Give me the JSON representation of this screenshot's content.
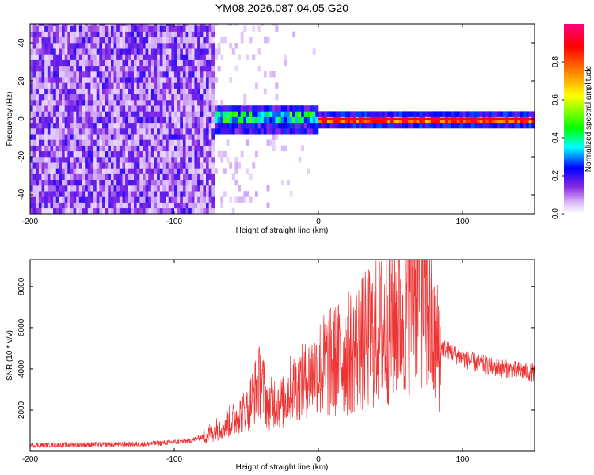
{
  "title": "YM08.2026.087.04.05.G20",
  "chart_data": [
    {
      "type": "heatmap",
      "name": "spectrogram",
      "xlabel": "Height of straight line (km)",
      "ylabel": "Frequency (Hz)",
      "xlim": [
        -200,
        150
      ],
      "ylim": [
        -50,
        50
      ],
      "x_ticks": [
        -200,
        -100,
        0,
        100
      ],
      "y_ticks": [
        -40,
        -20,
        0,
        20,
        40
      ],
      "colorbar": {
        "label": "Normalized spectral amplitude",
        "range": [
          0,
          1
        ],
        "ticks": [
          0.0,
          0.2,
          0.4,
          0.6,
          0.8
        ],
        "colors": [
          "#ffffff",
          "#8a2be2",
          "#0000ff",
          "#00ffff",
          "#00ff00",
          "#ffff00",
          "#ff8000",
          "#ff0000",
          "#ff0080"
        ]
      },
      "regions": [
        {
          "x_range": [
            -200,
            -72
          ],
          "description": "broadband noise",
          "amplitude": 0.25,
          "freq_range": [
            -50,
            50
          ]
        },
        {
          "x_range": [
            -72,
            0
          ],
          "description": "narrowband signal",
          "amplitude": 0.45,
          "freq_range": [
            -6,
            6
          ]
        },
        {
          "x_range": [
            0,
            150
          ],
          "description": "strong tone near 0 Hz",
          "amplitude": 0.9,
          "freq_range": [
            -3,
            3
          ]
        }
      ]
    },
    {
      "type": "line",
      "name": "snr",
      "xlabel": "Height of straight line (km)",
      "ylabel": "SNR (10 * v/v)",
      "xlim": [
        -200,
        150
      ],
      "ylim": [
        0,
        9300
      ],
      "x_ticks": [
        -200,
        -100,
        0,
        100
      ],
      "y_ticks": [
        2000,
        4000,
        6000,
        8000
      ],
      "color": "#ee3333",
      "envelope": {
        "x": [
          -200,
          -120,
          -90,
          -80,
          -60,
          -50,
          -40,
          -35,
          -30,
          -25,
          -20,
          -10,
          0,
          10,
          20,
          30,
          40,
          50,
          60,
          65,
          70,
          75,
          80,
          90,
          100,
          110,
          120,
          130,
          140,
          150
        ],
        "y": [
          300,
          350,
          500,
          700,
          1500,
          2000,
          3500,
          2200,
          2500,
          2300,
          3000,
          3400,
          4000,
          4300,
          4700,
          5200,
          5700,
          6200,
          7000,
          8000,
          9200,
          7000,
          5200,
          4900,
          4500,
          4300,
          4100,
          4000,
          3900,
          3800
        ]
      }
    }
  ]
}
